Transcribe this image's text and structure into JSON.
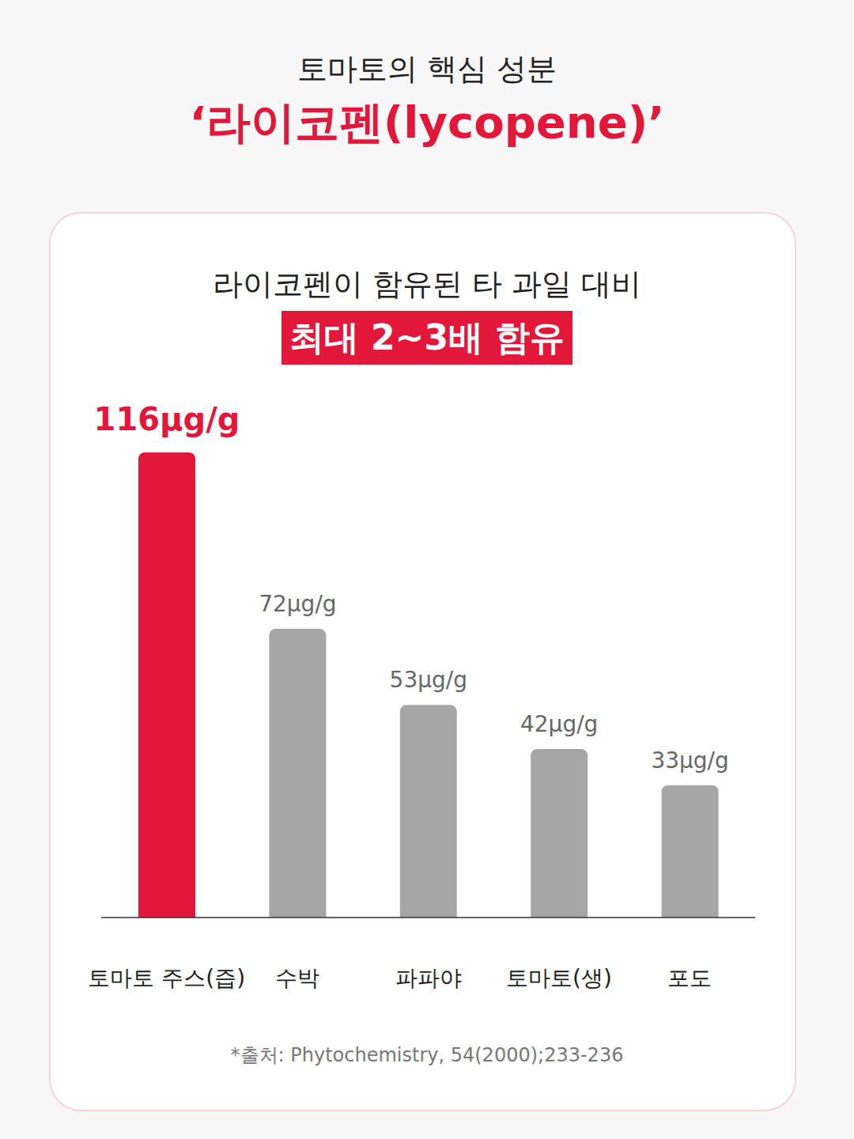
{
  "chart_data": {
    "type": "bar",
    "title": "토마토의 핵심 성분",
    "subtitle": "‘라이코펜(lycopene)’",
    "annotations": [
      "라이코펜이 함유된 타 과일 대비",
      "최대 2~3배 함유",
      "*출처: Phytochemistry, 54(2000);233-236"
    ],
    "categories": [
      "토마토 주스(즙)",
      "수박",
      "파파야",
      "토마토(생)",
      "포도"
    ],
    "values": [
      116,
      72,
      53,
      42,
      33
    ],
    "value_labels": [
      "116μg/g",
      "72μg/g",
      "53μg/g",
      "42μg/g",
      "33μg/g"
    ],
    "colors": [
      "#e3173a",
      "#a6a6a6",
      "#a6a6a6",
      "#a6a6a6",
      "#a6a6a6"
    ],
    "ylim": [
      0,
      116
    ],
    "data_labels": true,
    "tick_labels": "x",
    "grid": false
  }
}
